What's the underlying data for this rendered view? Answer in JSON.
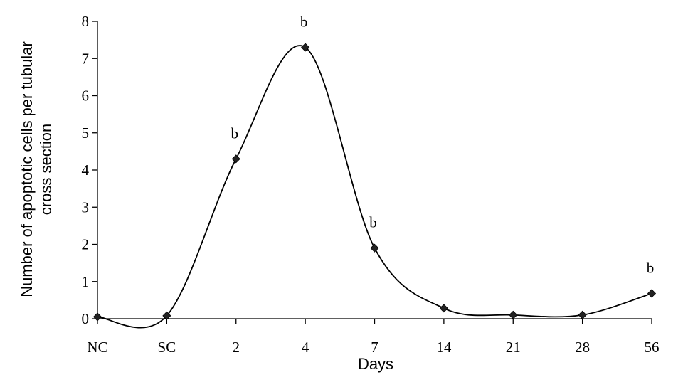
{
  "chart_data": {
    "type": "line",
    "categories": [
      "NC",
      "SC",
      "2",
      "4",
      "7",
      "14",
      "21",
      "28",
      "56"
    ],
    "series": [
      {
        "values": [
          0.05,
          0.08,
          4.3,
          7.3,
          1.9,
          0.28,
          0.1,
          0.1,
          0.68
        ]
      }
    ],
    "annotations": [
      {
        "category": "2",
        "text": "b"
      },
      {
        "category": "4",
        "text": "b"
      },
      {
        "category": "7",
        "text": "b"
      },
      {
        "category": "56",
        "text": "b"
      }
    ],
    "xlabel": "Days",
    "ylabel_lines": [
      "Number of apoptotic cells per tubular",
      "cross section"
    ],
    "ylim": [
      0,
      8
    ],
    "yticks": [
      0,
      1,
      2,
      3,
      4,
      5,
      6,
      7,
      8
    ],
    "grid": false,
    "line_color": "#000000",
    "marker": "diamond"
  }
}
